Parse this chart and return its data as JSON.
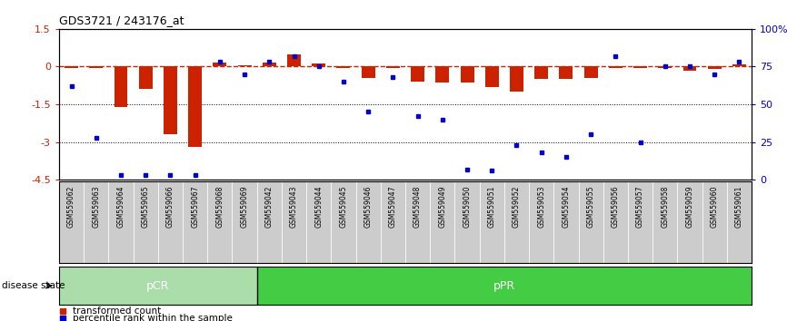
{
  "title": "GDS3721 / 243176_at",
  "samples": [
    "GSM559062",
    "GSM559063",
    "GSM559064",
    "GSM559065",
    "GSM559066",
    "GSM559067",
    "GSM559068",
    "GSM559069",
    "GSM559042",
    "GSM559043",
    "GSM559044",
    "GSM559045",
    "GSM559046",
    "GSM559047",
    "GSM559048",
    "GSM559049",
    "GSM559050",
    "GSM559051",
    "GSM559052",
    "GSM559053",
    "GSM559054",
    "GSM559055",
    "GSM559056",
    "GSM559057",
    "GSM559058",
    "GSM559059",
    "GSM559060",
    "GSM559061"
  ],
  "transformed_count": [
    -0.05,
    -0.05,
    -1.6,
    -0.9,
    -2.7,
    -3.2,
    0.15,
    0.05,
    0.15,
    0.5,
    0.12,
    -0.05,
    -0.45,
    -0.05,
    -0.6,
    -0.65,
    -0.65,
    -0.8,
    -1.0,
    -0.5,
    -0.5,
    -0.45,
    -0.05,
    -0.05,
    -0.05,
    -0.15,
    -0.1,
    0.1
  ],
  "percentile_rank": [
    62,
    28,
    3,
    3,
    3,
    3,
    78,
    70,
    78,
    82,
    75,
    65,
    45,
    68,
    42,
    40,
    7,
    6,
    23,
    18,
    15,
    30,
    82,
    25,
    75,
    75,
    70,
    78
  ],
  "pcr_count": 8,
  "ppr_count": 20,
  "ylim_left": [
    -4.5,
    1.5
  ],
  "yticks_left": [
    1.5,
    0,
    -1.5,
    -3,
    -4.5
  ],
  "yticks_right": [
    100,
    75,
    50,
    25,
    0
  ],
  "yticklabels_right": [
    "100%",
    "75",
    "50",
    "25",
    "0"
  ],
  "bar_color_red": "#cc2200",
  "bar_color_blue": "#0000cc",
  "pcr_color_light": "#aaddaa",
  "ppr_color_bright": "#44cc44",
  "label_bg_color": "#cccccc",
  "zero_line_color": "#cc2200",
  "grid_color": "#000000",
  "pcr_label": "pCR",
  "ppr_label": "pPR",
  "disease_state_label": "disease state",
  "legend_red": "transformed count",
  "legend_blue": "percentile rank within the sample"
}
